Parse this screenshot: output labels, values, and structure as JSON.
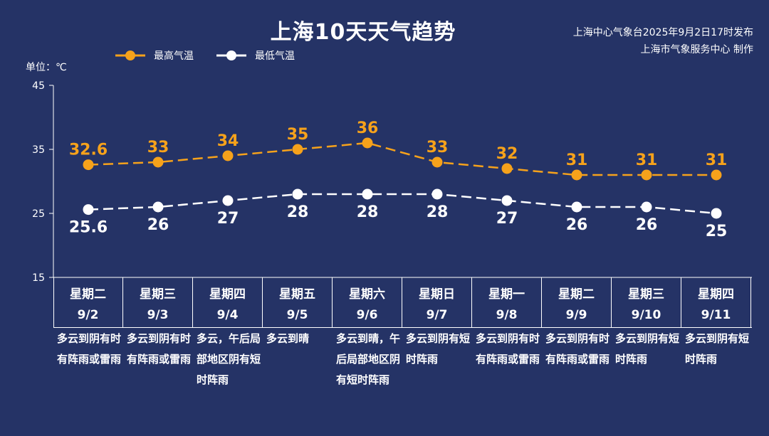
{
  "title": "上海10天天气趋势",
  "source": {
    "line1": "上海中心气象台2025年9月2日17时发布",
    "line2": "上海市气象服务中心 制作"
  },
  "unit_label": "单位：℃",
  "colors": {
    "background": "#253366",
    "high": "#f6a21b",
    "low": "#ffffff"
  },
  "chart_data": {
    "type": "line",
    "title": "上海10天天气趋势",
    "ylabel": "单位：℃",
    "ylim": [
      15,
      45
    ],
    "yticks": [
      15,
      25,
      35,
      45
    ],
    "grid": false,
    "legend_position": "top-left",
    "categories": [
      "9/2",
      "9/3",
      "9/4",
      "9/5",
      "9/6",
      "9/7",
      "9/8",
      "9/9",
      "9/10",
      "9/11"
    ],
    "weekdays": [
      "星期二",
      "星期三",
      "星期四",
      "星期五",
      "星期六",
      "星期日",
      "星期一",
      "星期二",
      "星期三",
      "星期四"
    ],
    "series": [
      {
        "name": "最高气温",
        "values": [
          32.6,
          33,
          34,
          35,
          36,
          33,
          32,
          31,
          31,
          31
        ]
      },
      {
        "name": "最低气温",
        "values": [
          25.6,
          26,
          27,
          28,
          28,
          28,
          27,
          26,
          26,
          25
        ]
      }
    ],
    "descriptions": [
      "多云到阴有时有阵雨或雷雨",
      "多云到阴有时有阵雨或雷雨",
      "多云，午后局部地区阴有短时阵雨",
      "多云到晴",
      "多云到晴，午后局部地区阴有短时阵雨",
      "多云到阴有短时阵雨",
      "多云到阴有时有阵雨或雷雨",
      "多云到阴有时有阵雨或雷雨",
      "多云到阴有短时阵雨",
      "多云到阴有短时阵雨"
    ]
  }
}
